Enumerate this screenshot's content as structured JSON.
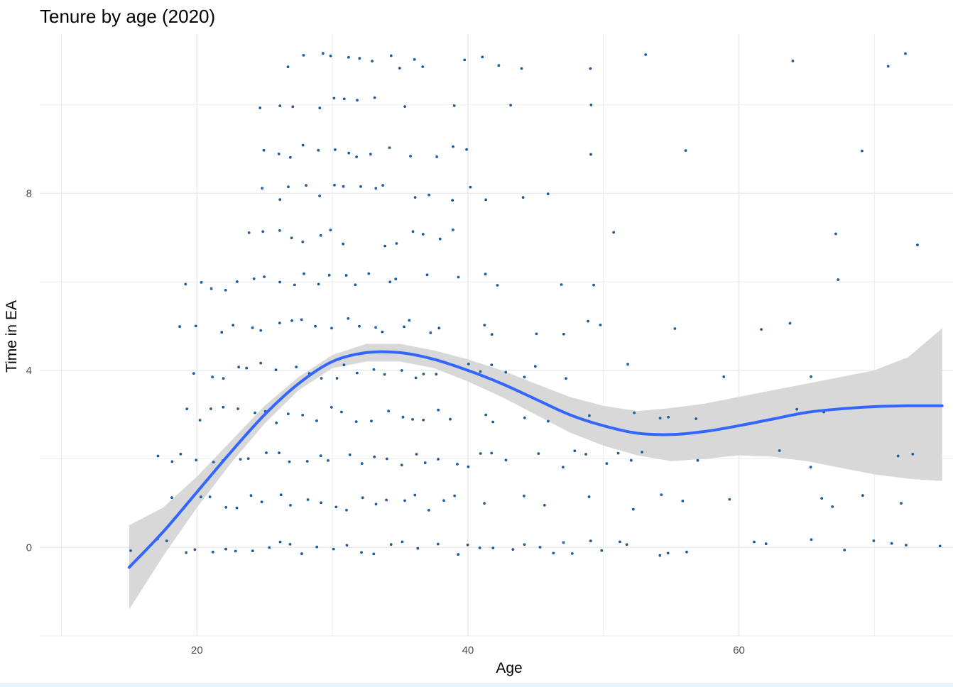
{
  "chart_data": {
    "type": "scatter",
    "title": "Tenure by age (2020)",
    "xlabel": "Age",
    "ylabel": "Time in EA",
    "xlim": [
      8.4,
      75.8
    ],
    "ylim": [
      -2.0,
      11.6
    ],
    "x_ticks": [
      20,
      40,
      60
    ],
    "y_ticks": [
      0,
      4,
      8
    ],
    "grid": true,
    "colors": {
      "points": "#1f5c99",
      "smooth": "#3366ff",
      "ribbon": "#d6d6d6",
      "grid": "#ebebeb"
    },
    "smooth": {
      "x": [
        15,
        17.5,
        20,
        22.5,
        25,
        27.5,
        30,
        32.5,
        35,
        37.5,
        40,
        42.5,
        45,
        47.5,
        50,
        52.5,
        55,
        57.5,
        60,
        62.5,
        65,
        67.5,
        70,
        72.5,
        75
      ],
      "y": [
        -0.45,
        0.35,
        1.25,
        2.15,
        3.0,
        3.7,
        4.2,
        4.4,
        4.4,
        4.25,
        4.0,
        3.7,
        3.35,
        3.0,
        2.75,
        2.58,
        2.55,
        2.62,
        2.75,
        2.9,
        3.05,
        3.13,
        3.18,
        3.2,
        3.2
      ],
      "lower": [
        -1.4,
        -0.2,
        0.9,
        1.9,
        2.8,
        3.55,
        4.05,
        4.2,
        4.2,
        4.05,
        3.75,
        3.4,
        3.0,
        2.6,
        2.3,
        2.08,
        1.95,
        2.0,
        2.08,
        2.05,
        1.95,
        1.8,
        1.65,
        1.55,
        1.5
      ],
      "upper": [
        0.5,
        0.9,
        1.6,
        2.4,
        3.2,
        3.85,
        4.35,
        4.6,
        4.6,
        4.45,
        4.25,
        4.0,
        3.7,
        3.4,
        3.2,
        3.08,
        3.15,
        3.25,
        3.4,
        3.55,
        3.7,
        3.85,
        4.0,
        4.3,
        4.95
      ]
    },
    "points": [
      {
        "age": 15,
        "years": 0
      },
      {
        "age": 17,
        "years": 0
      },
      {
        "age": 17,
        "years": 2
      },
      {
        "age": 18,
        "years": 0
      },
      {
        "age": 18,
        "years": 1
      },
      {
        "age": 18,
        "years": 2
      },
      {
        "age": 19,
        "years": 0
      },
      {
        "age": 19,
        "years": 1
      },
      {
        "age": 19,
        "years": 2
      },
      {
        "age": 19,
        "years": 3
      },
      {
        "age": 19,
        "years": 5
      },
      {
        "age": 19,
        "years": 6
      },
      {
        "age": 20,
        "years": 0
      },
      {
        "age": 20,
        "years": 1
      },
      {
        "age": 20,
        "years": 2
      },
      {
        "age": 20,
        "years": 3
      },
      {
        "age": 20,
        "years": 4
      },
      {
        "age": 20,
        "years": 5
      },
      {
        "age": 20,
        "years": 6
      },
      {
        "age": 21,
        "years": 0
      },
      {
        "age": 21,
        "years": 1
      },
      {
        "age": 21,
        "years": 2
      },
      {
        "age": 21,
        "years": 3
      },
      {
        "age": 21,
        "years": 4
      },
      {
        "age": 21,
        "years": 6
      },
      {
        "age": 22,
        "years": 0
      },
      {
        "age": 22,
        "years": 1
      },
      {
        "age": 22,
        "years": 2
      },
      {
        "age": 22,
        "years": 3
      },
      {
        "age": 22,
        "years": 4
      },
      {
        "age": 22,
        "years": 5
      },
      {
        "age": 22,
        "years": 6
      },
      {
        "age": 23,
        "years": 0
      },
      {
        "age": 23,
        "years": 1
      },
      {
        "age": 23,
        "years": 2
      },
      {
        "age": 23,
        "years": 3
      },
      {
        "age": 23,
        "years": 4
      },
      {
        "age": 23,
        "years": 5
      },
      {
        "age": 23,
        "years": 6
      },
      {
        "age": 24,
        "years": 0
      },
      {
        "age": 24,
        "years": 1
      },
      {
        "age": 24,
        "years": 2
      },
      {
        "age": 24,
        "years": 3
      },
      {
        "age": 24,
        "years": 4
      },
      {
        "age": 24,
        "years": 5
      },
      {
        "age": 24,
        "years": 6
      },
      {
        "age": 24,
        "years": 7
      },
      {
        "age": 25,
        "years": 0
      },
      {
        "age": 25,
        "years": 1
      },
      {
        "age": 25,
        "years": 2
      },
      {
        "age": 25,
        "years": 3
      },
      {
        "age": 25,
        "years": 4
      },
      {
        "age": 25,
        "years": 5
      },
      {
        "age": 25,
        "years": 6
      },
      {
        "age": 25,
        "years": 7
      },
      {
        "age": 25,
        "years": 8
      },
      {
        "age": 25,
        "years": 9
      },
      {
        "age": 25,
        "years": 10
      },
      {
        "age": 26,
        "years": 0
      },
      {
        "age": 26,
        "years": 1
      },
      {
        "age": 26,
        "years": 2
      },
      {
        "age": 26,
        "years": 3
      },
      {
        "age": 26,
        "years": 4
      },
      {
        "age": 26,
        "years": 5
      },
      {
        "age": 26,
        "years": 6
      },
      {
        "age": 26,
        "years": 7
      },
      {
        "age": 26,
        "years": 8
      },
      {
        "age": 26,
        "years": 9
      },
      {
        "age": 26,
        "years": 10
      },
      {
        "age": 27,
        "years": 0
      },
      {
        "age": 27,
        "years": 1
      },
      {
        "age": 27,
        "years": 2
      },
      {
        "age": 27,
        "years": 3
      },
      {
        "age": 27,
        "years": 4
      },
      {
        "age": 27,
        "years": 5
      },
      {
        "age": 27,
        "years": 6
      },
      {
        "age": 27,
        "years": 7
      },
      {
        "age": 27,
        "years": 8
      },
      {
        "age": 27,
        "years": 9
      },
      {
        "age": 27,
        "years": 10
      },
      {
        "age": 27,
        "years": 11
      },
      {
        "age": 28,
        "years": 0
      },
      {
        "age": 28,
        "years": 1
      },
      {
        "age": 28,
        "years": 2
      },
      {
        "age": 28,
        "years": 3
      },
      {
        "age": 28,
        "years": 4
      },
      {
        "age": 28,
        "years": 5
      },
      {
        "age": 28,
        "years": 6
      },
      {
        "age": 28,
        "years": 7
      },
      {
        "age": 28,
        "years": 8
      },
      {
        "age": 28,
        "years": 9
      },
      {
        "age": 28,
        "years": 11
      },
      {
        "age": 29,
        "years": 0
      },
      {
        "age": 29,
        "years": 1
      },
      {
        "age": 29,
        "years": 2
      },
      {
        "age": 29,
        "years": 3
      },
      {
        "age": 29,
        "years": 4
      },
      {
        "age": 29,
        "years": 5
      },
      {
        "age": 29,
        "years": 6
      },
      {
        "age": 29,
        "years": 7
      },
      {
        "age": 29,
        "years": 8
      },
      {
        "age": 29,
        "years": 9
      },
      {
        "age": 29,
        "years": 10
      },
      {
        "age": 29,
        "years": 11
      },
      {
        "age": 30,
        "years": 0
      },
      {
        "age": 30,
        "years": 1
      },
      {
        "age": 30,
        "years": 2
      },
      {
        "age": 30,
        "years": 3
      },
      {
        "age": 30,
        "years": 4
      },
      {
        "age": 30,
        "years": 5
      },
      {
        "age": 30,
        "years": 6
      },
      {
        "age": 30,
        "years": 7
      },
      {
        "age": 30,
        "years": 8
      },
      {
        "age": 30,
        "years": 9
      },
      {
        "age": 30,
        "years": 10
      },
      {
        "age": 30,
        "years": 11
      },
      {
        "age": 31,
        "years": 0
      },
      {
        "age": 31,
        "years": 1
      },
      {
        "age": 31,
        "years": 2
      },
      {
        "age": 31,
        "years": 3
      },
      {
        "age": 31,
        "years": 4
      },
      {
        "age": 31,
        "years": 5
      },
      {
        "age": 31,
        "years": 6
      },
      {
        "age": 31,
        "years": 7
      },
      {
        "age": 31,
        "years": 8
      },
      {
        "age": 31,
        "years": 9
      },
      {
        "age": 31,
        "years": 10
      },
      {
        "age": 31,
        "years": 11
      },
      {
        "age": 32,
        "years": 0
      },
      {
        "age": 32,
        "years": 1
      },
      {
        "age": 32,
        "years": 2
      },
      {
        "age": 32,
        "years": 3
      },
      {
        "age": 32,
        "years": 4
      },
      {
        "age": 32,
        "years": 5
      },
      {
        "age": 32,
        "years": 6
      },
      {
        "age": 32,
        "years": 8
      },
      {
        "age": 32,
        "years": 9
      },
      {
        "age": 32,
        "years": 10
      },
      {
        "age": 32,
        "years": 11
      },
      {
        "age": 33,
        "years": 0
      },
      {
        "age": 33,
        "years": 1
      },
      {
        "age": 33,
        "years": 2
      },
      {
        "age": 33,
        "years": 3
      },
      {
        "age": 33,
        "years": 4
      },
      {
        "age": 33,
        "years": 5
      },
      {
        "age": 33,
        "years": 6
      },
      {
        "age": 33,
        "years": 8
      },
      {
        "age": 33,
        "years": 9
      },
      {
        "age": 33,
        "years": 10
      },
      {
        "age": 33,
        "years": 11
      },
      {
        "age": 34,
        "years": 0
      },
      {
        "age": 34,
        "years": 1
      },
      {
        "age": 34,
        "years": 2
      },
      {
        "age": 34,
        "years": 3
      },
      {
        "age": 34,
        "years": 4
      },
      {
        "age": 34,
        "years": 5
      },
      {
        "age": 34,
        "years": 6
      },
      {
        "age": 34,
        "years": 7
      },
      {
        "age": 34,
        "years": 8
      },
      {
        "age": 34,
        "years": 9
      },
      {
        "age": 34,
        "years": 11
      },
      {
        "age": 35,
        "years": 0
      },
      {
        "age": 35,
        "years": 1
      },
      {
        "age": 35,
        "years": 2
      },
      {
        "age": 35,
        "years": 3
      },
      {
        "age": 35,
        "years": 4
      },
      {
        "age": 35,
        "years": 5
      },
      {
        "age": 35,
        "years": 6
      },
      {
        "age": 35,
        "years": 7
      },
      {
        "age": 35,
        "years": 10
      },
      {
        "age": 35,
        "years": 11
      },
      {
        "age": 36,
        "years": 0
      },
      {
        "age": 36,
        "years": 1
      },
      {
        "age": 36,
        "years": 2
      },
      {
        "age": 36,
        "years": 3
      },
      {
        "age": 36,
        "years": 4
      },
      {
        "age": 36,
        "years": 5
      },
      {
        "age": 36,
        "years": 7
      },
      {
        "age": 36,
        "years": 8
      },
      {
        "age": 36,
        "years": 9
      },
      {
        "age": 36,
        "years": 11
      },
      {
        "age": 37,
        "years": 1
      },
      {
        "age": 37,
        "years": 2
      },
      {
        "age": 37,
        "years": 3
      },
      {
        "age": 37,
        "years": 4
      },
      {
        "age": 37,
        "years": 5
      },
      {
        "age": 37,
        "years": 6
      },
      {
        "age": 37,
        "years": 7
      },
      {
        "age": 37,
        "years": 8
      },
      {
        "age": 37,
        "years": 11
      },
      {
        "age": 38,
        "years": 0
      },
      {
        "age": 38,
        "years": 1
      },
      {
        "age": 38,
        "years": 2
      },
      {
        "age": 38,
        "years": 3
      },
      {
        "age": 38,
        "years": 4
      },
      {
        "age": 38,
        "years": 5
      },
      {
        "age": 38,
        "years": 7
      },
      {
        "age": 38,
        "years": 9
      },
      {
        "age": 39,
        "years": 0
      },
      {
        "age": 39,
        "years": 1
      },
      {
        "age": 39,
        "years": 2
      },
      {
        "age": 39,
        "years": 3
      },
      {
        "age": 39,
        "years": 6
      },
      {
        "age": 39,
        "years": 7
      },
      {
        "age": 39,
        "years": 8
      },
      {
        "age": 39,
        "years": 9
      },
      {
        "age": 39,
        "years": 10
      },
      {
        "age": 40,
        "years": 0
      },
      {
        "age": 40,
        "years": 2
      },
      {
        "age": 40,
        "years": 4
      },
      {
        "age": 40,
        "years": 8
      },
      {
        "age": 40,
        "years": 9
      },
      {
        "age": 40,
        "years": 11
      },
      {
        "age": 41,
        "years": 0
      },
      {
        "age": 41,
        "years": 1
      },
      {
        "age": 41,
        "years": 2
      },
      {
        "age": 41,
        "years": 3
      },
      {
        "age": 41,
        "years": 4
      },
      {
        "age": 41,
        "years": 5
      },
      {
        "age": 41,
        "years": 6
      },
      {
        "age": 41,
        "years": 8
      },
      {
        "age": 41,
        "years": 11
      },
      {
        "age": 42,
        "years": 0
      },
      {
        "age": 42,
        "years": 2
      },
      {
        "age": 42,
        "years": 3
      },
      {
        "age": 42,
        "years": 4
      },
      {
        "age": 42,
        "years": 5
      },
      {
        "age": 42,
        "years": 6
      },
      {
        "age": 42,
        "years": 11
      },
      {
        "age": 43,
        "years": 0
      },
      {
        "age": 43,
        "years": 2
      },
      {
        "age": 43,
        "years": 4
      },
      {
        "age": 43,
        "years": 10
      },
      {
        "age": 44,
        "years": 0
      },
      {
        "age": 44,
        "years": 1
      },
      {
        "age": 44,
        "years": 3
      },
      {
        "age": 44,
        "years": 4
      },
      {
        "age": 44,
        "years": 8
      },
      {
        "age": 44,
        "years": 11
      },
      {
        "age": 45,
        "years": 0
      },
      {
        "age": 45,
        "years": 2
      },
      {
        "age": 45,
        "years": 4
      },
      {
        "age": 45,
        "years": 5
      },
      {
        "age": 46,
        "years": 0
      },
      {
        "age": 46,
        "years": 1
      },
      {
        "age": 46,
        "years": 3
      },
      {
        "age": 46,
        "years": 8
      },
      {
        "age": 47,
        "years": 0
      },
      {
        "age": 47,
        "years": 2
      },
      {
        "age": 47,
        "years": 4
      },
      {
        "age": 47,
        "years": 5
      },
      {
        "age": 47,
        "years": 6
      },
      {
        "age": 48,
        "years": 0
      },
      {
        "age": 48,
        "years": 2
      },
      {
        "age": 49,
        "years": 0
      },
      {
        "age": 49,
        "years": 1
      },
      {
        "age": 49,
        "years": 2
      },
      {
        "age": 49,
        "years": 3
      },
      {
        "age": 49,
        "years": 5
      },
      {
        "age": 49,
        "years": 6
      },
      {
        "age": 49,
        "years": 9
      },
      {
        "age": 49,
        "years": 10
      },
      {
        "age": 49,
        "years": 11
      },
      {
        "age": 50,
        "years": 0
      },
      {
        "age": 50,
        "years": 2
      },
      {
        "age": 50,
        "years": 5
      },
      {
        "age": 51,
        "years": 0
      },
      {
        "age": 51,
        "years": 2
      },
      {
        "age": 51,
        "years": 7
      },
      {
        "age": 52,
        "years": 0
      },
      {
        "age": 52,
        "years": 1
      },
      {
        "age": 52,
        "years": 2
      },
      {
        "age": 52,
        "years": 3
      },
      {
        "age": 52,
        "years": 4
      },
      {
        "age": 53,
        "years": 2
      },
      {
        "age": 53,
        "years": 11
      },
      {
        "age": 54,
        "years": 0
      },
      {
        "age": 54,
        "years": 1
      },
      {
        "age": 54,
        "years": 3
      },
      {
        "age": 55,
        "years": 0
      },
      {
        "age": 55,
        "years": 3
      },
      {
        "age": 55,
        "years": 5
      },
      {
        "age": 56,
        "years": 0
      },
      {
        "age": 56,
        "years": 1
      },
      {
        "age": 56,
        "years": 9
      },
      {
        "age": 57,
        "years": 2
      },
      {
        "age": 57,
        "years": 3
      },
      {
        "age": 59,
        "years": 1
      },
      {
        "age": 59,
        "years": 4
      },
      {
        "age": 61,
        "years": 0
      },
      {
        "age": 62,
        "years": 0
      },
      {
        "age": 62,
        "years": 5
      },
      {
        "age": 63,
        "years": 2
      },
      {
        "age": 64,
        "years": 3
      },
      {
        "age": 64,
        "years": 5
      },
      {
        "age": 64,
        "years": 11
      },
      {
        "age": 65,
        "years": 0
      },
      {
        "age": 65,
        "years": 2
      },
      {
        "age": 65,
        "years": 4
      },
      {
        "age": 66,
        "years": 1
      },
      {
        "age": 66,
        "years": 3
      },
      {
        "age": 67,
        "years": 1
      },
      {
        "age": 67,
        "years": 6
      },
      {
        "age": 67,
        "years": 7
      },
      {
        "age": 68,
        "years": 0
      },
      {
        "age": 69,
        "years": 1
      },
      {
        "age": 69,
        "years": 9
      },
      {
        "age": 70,
        "years": 0
      },
      {
        "age": 71,
        "years": 0
      },
      {
        "age": 71,
        "years": 11
      },
      {
        "age": 72,
        "years": 0
      },
      {
        "age": 72,
        "years": 1
      },
      {
        "age": 72,
        "years": 2
      },
      {
        "age": 72,
        "years": 11
      },
      {
        "age": 73,
        "years": 2
      },
      {
        "age": 73,
        "years": 7
      },
      {
        "age": 75,
        "years": 0
      }
    ]
  }
}
